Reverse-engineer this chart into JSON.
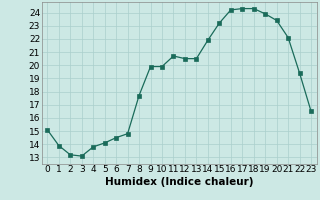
{
  "x": [
    0,
    1,
    2,
    3,
    4,
    5,
    6,
    7,
    8,
    9,
    10,
    11,
    12,
    13,
    14,
    15,
    16,
    17,
    18,
    19,
    20,
    21,
    22,
    23
  ],
  "y": [
    15.1,
    13.9,
    13.2,
    13.1,
    13.8,
    14.1,
    14.5,
    14.8,
    17.7,
    19.9,
    19.9,
    20.7,
    20.5,
    20.5,
    21.9,
    23.2,
    24.2,
    24.3,
    24.3,
    23.9,
    23.4,
    22.1,
    19.4,
    16.5
  ],
  "xlabel": "Humidex (Indice chaleur)",
  "xlim": [
    -0.5,
    23.5
  ],
  "ylim": [
    12.5,
    24.8
  ],
  "yticks": [
    13,
    14,
    15,
    16,
    17,
    18,
    19,
    20,
    21,
    22,
    23,
    24
  ],
  "xticks": [
    0,
    1,
    2,
    3,
    4,
    5,
    6,
    7,
    8,
    9,
    10,
    11,
    12,
    13,
    14,
    15,
    16,
    17,
    18,
    19,
    20,
    21,
    22,
    23
  ],
  "line_color": "#1a6b5a",
  "marker": "s",
  "marker_size": 2.2,
  "bg_color": "#cce8e4",
  "grid_color": "#aacfcc",
  "tick_label_fontsize": 6.5,
  "xlabel_fontsize": 7.5
}
